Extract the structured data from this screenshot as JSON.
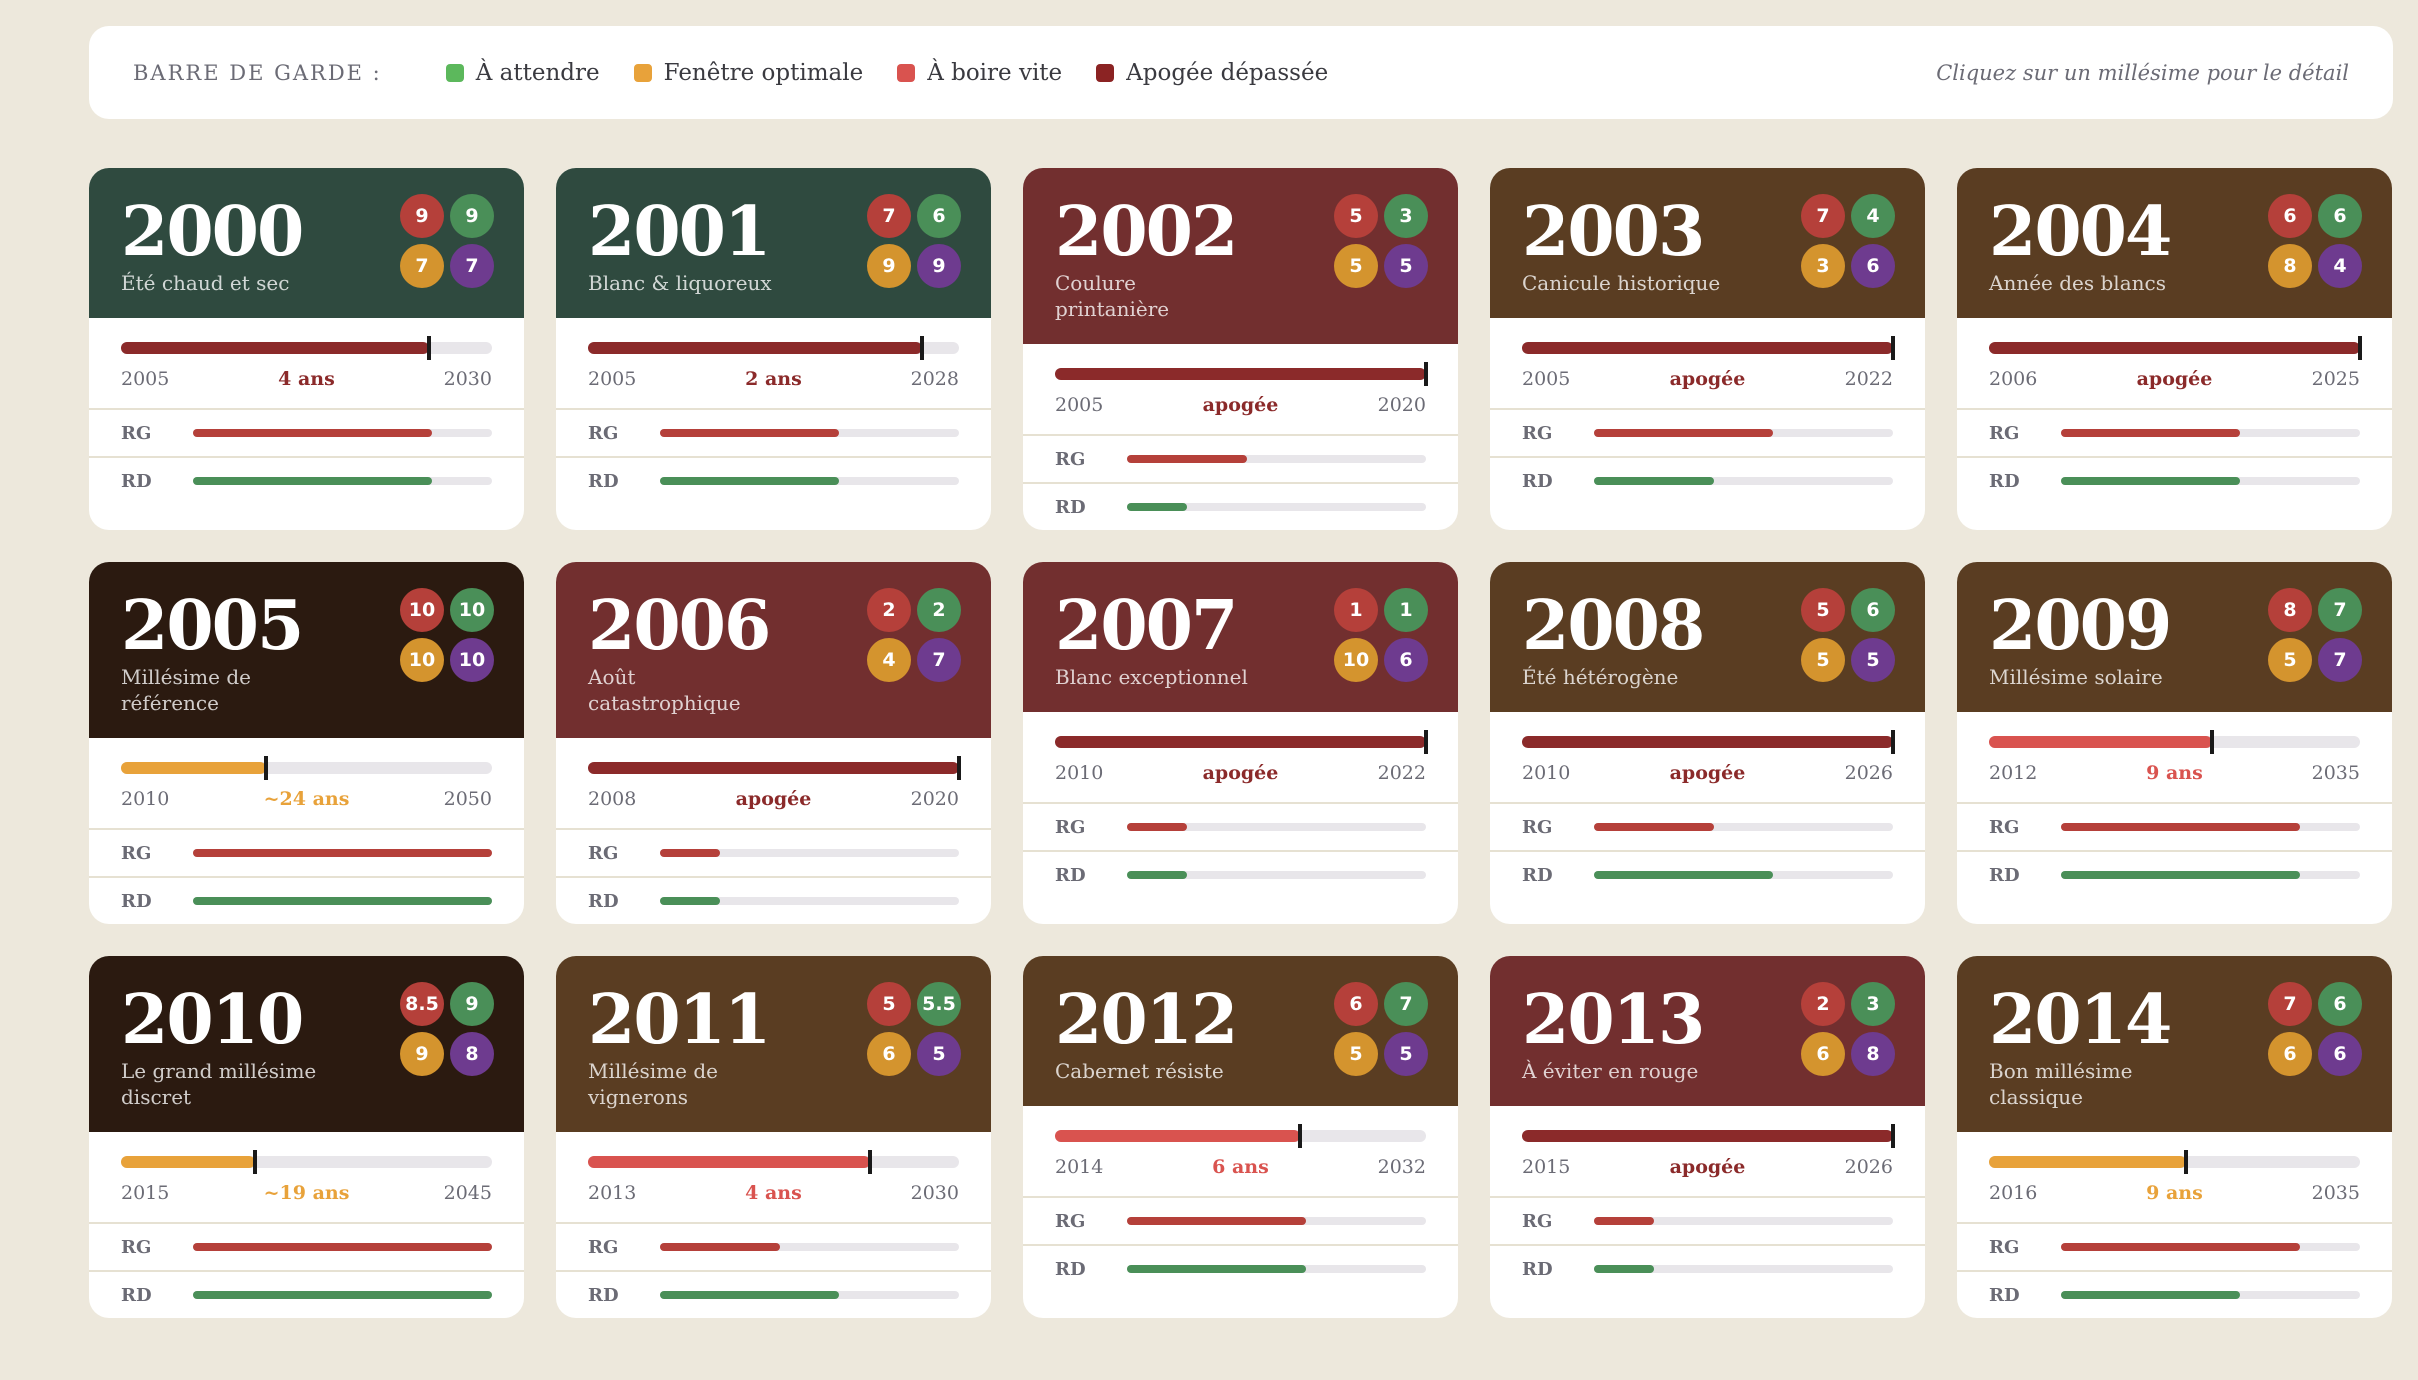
{
  "legend": {
    "title": "BARRE DE GARDE :",
    "items": [
      {
        "label": "À attendre",
        "color": "#5cb85c"
      },
      {
        "label": "Fenêtre optimale",
        "color": "#e8a23a"
      },
      {
        "label": "À boire vite",
        "color": "#d9534f"
      },
      {
        "label": "Apogée dépassée",
        "color": "#8b2323"
      }
    ],
    "hint": "Cliquez sur un millésime pour le détail"
  },
  "score_colors": [
    "#b5403a",
    "#4a8f58",
    "#d4942e",
    "#6e3b8f"
  ],
  "rows": {
    "rg": "RG",
    "rd": "RD"
  },
  "cards": [
    {
      "year": 2000,
      "subtitle": "Été chaud et sec",
      "header_color": "#2f4a3f",
      "scores": [
        9,
        9,
        7,
        7
      ],
      "keep": {
        "start": 2005,
        "status": "4 ans",
        "end": 2030,
        "progress": 0.83,
        "color": "#8b2a2a"
      },
      "rg": 0.8,
      "rd": 0.8
    },
    {
      "year": 2001,
      "subtitle": "Blanc & liquoreux",
      "header_color": "#2f4a3f",
      "scores": [
        7,
        6,
        9,
        9
      ],
      "keep": {
        "start": 2005,
        "status": "2 ans",
        "end": 2028,
        "progress": 0.9,
        "color": "#8b2a2a"
      },
      "rg": 0.6,
      "rd": 0.6
    },
    {
      "year": 2002,
      "subtitle": "Coulure printanière",
      "header_color": "#722f2f",
      "scores": [
        5,
        3,
        5,
        5
      ],
      "keep": {
        "start": 2005,
        "status": "apogée",
        "end": 2020,
        "progress": 1,
        "color": "#8b2a2a"
      },
      "rg": 0.4,
      "rd": 0.2
    },
    {
      "year": 2003,
      "subtitle": "Canicule historique",
      "header_color": "#5a3d22",
      "scores": [
        7,
        4,
        3,
        6
      ],
      "keep": {
        "start": 2005,
        "status": "apogée",
        "end": 2022,
        "progress": 1,
        "color": "#8b2a2a"
      },
      "rg": 0.6,
      "rd": 0.4
    },
    {
      "year": 2004,
      "subtitle": "Année des blancs",
      "header_color": "#5a3d22",
      "scores": [
        6,
        6,
        8,
        4
      ],
      "keep": {
        "start": 2006,
        "status": "apogée",
        "end": 2025,
        "progress": 1,
        "color": "#8b2a2a"
      },
      "rg": 0.6,
      "rd": 0.6
    },
    {
      "year": 2005,
      "subtitle": "Millésime de référence",
      "header_color": "#2b1a10",
      "scores": [
        10,
        10,
        10,
        10
      ],
      "keep": {
        "start": 2010,
        "status": "~24 ans",
        "end": 2050,
        "progress": 0.39,
        "color": "#e8a23a"
      },
      "rg": 1,
      "rd": 1
    },
    {
      "year": 2006,
      "subtitle": "Août catastrophique",
      "header_color": "#722f2f",
      "scores": [
        2,
        2,
        4,
        7
      ],
      "keep": {
        "start": 2008,
        "status": "apogée",
        "end": 2020,
        "progress": 1,
        "color": "#8b2a2a"
      },
      "rg": 0.2,
      "rd": 0.2
    },
    {
      "year": 2007,
      "subtitle": "Blanc exceptionnel",
      "header_color": "#722f2f",
      "scores": [
        1,
        1,
        10,
        6
      ],
      "keep": {
        "start": 2010,
        "status": "apogée",
        "end": 2022,
        "progress": 1,
        "color": "#8b2a2a"
      },
      "rg": 0.2,
      "rd": 0.2
    },
    {
      "year": 2008,
      "subtitle": "Été hétérogène",
      "header_color": "#5a3d22",
      "scores": [
        5,
        6,
        5,
        5
      ],
      "keep": {
        "start": 2010,
        "status": "apogée",
        "end": 2026,
        "progress": 1,
        "color": "#8b2a2a"
      },
      "rg": 0.4,
      "rd": 0.6
    },
    {
      "year": 2009,
      "subtitle": "Millésime solaire",
      "header_color": "#5a3d22",
      "scores": [
        8,
        7,
        5,
        7
      ],
      "keep": {
        "start": 2012,
        "status": "9 ans",
        "end": 2035,
        "progress": 0.6,
        "color": "#d9534f"
      },
      "rg": 0.8,
      "rd": 0.8
    },
    {
      "year": 2010,
      "subtitle": "Le grand millésime discret",
      "header_color": "#2b1a10",
      "scores": [
        8.5,
        9,
        9,
        8
      ],
      "keep": {
        "start": 2015,
        "status": "~19 ans",
        "end": 2045,
        "progress": 0.36,
        "color": "#e8a23a"
      },
      "rg": 1,
      "rd": 1
    },
    {
      "year": 2011,
      "subtitle": "Millésime de vignerons",
      "header_color": "#5a3d22",
      "scores": [
        5,
        5.5,
        6,
        5
      ],
      "keep": {
        "start": 2013,
        "status": "4 ans",
        "end": 2030,
        "progress": 0.76,
        "color": "#d9534f"
      },
      "rg": 0.4,
      "rd": 0.6
    },
    {
      "year": 2012,
      "subtitle": "Cabernet résiste",
      "header_color": "#5a3d22",
      "scores": [
        6,
        7,
        5,
        5
      ],
      "keep": {
        "start": 2014,
        "status": "6 ans",
        "end": 2032,
        "progress": 0.66,
        "color": "#d9534f"
      },
      "rg": 0.6,
      "rd": 0.6
    },
    {
      "year": 2013,
      "subtitle": "À éviter en rouge",
      "header_color": "#722f2f",
      "scores": [
        2,
        3,
        6,
        8
      ],
      "keep": {
        "start": 2015,
        "status": "apogée",
        "end": 2026,
        "progress": 1,
        "color": "#8b2a2a"
      },
      "rg": 0.2,
      "rd": 0.2
    },
    {
      "year": 2014,
      "subtitle": "Bon millésime classique",
      "header_color": "#5a3d22",
      "scores": [
        7,
        6,
        6,
        6
      ],
      "keep": {
        "start": 2016,
        "status": "9 ans",
        "end": 2035,
        "progress": 0.53,
        "color": "#e8a23a"
      },
      "rg": 0.8,
      "rd": 0.6
    }
  ]
}
